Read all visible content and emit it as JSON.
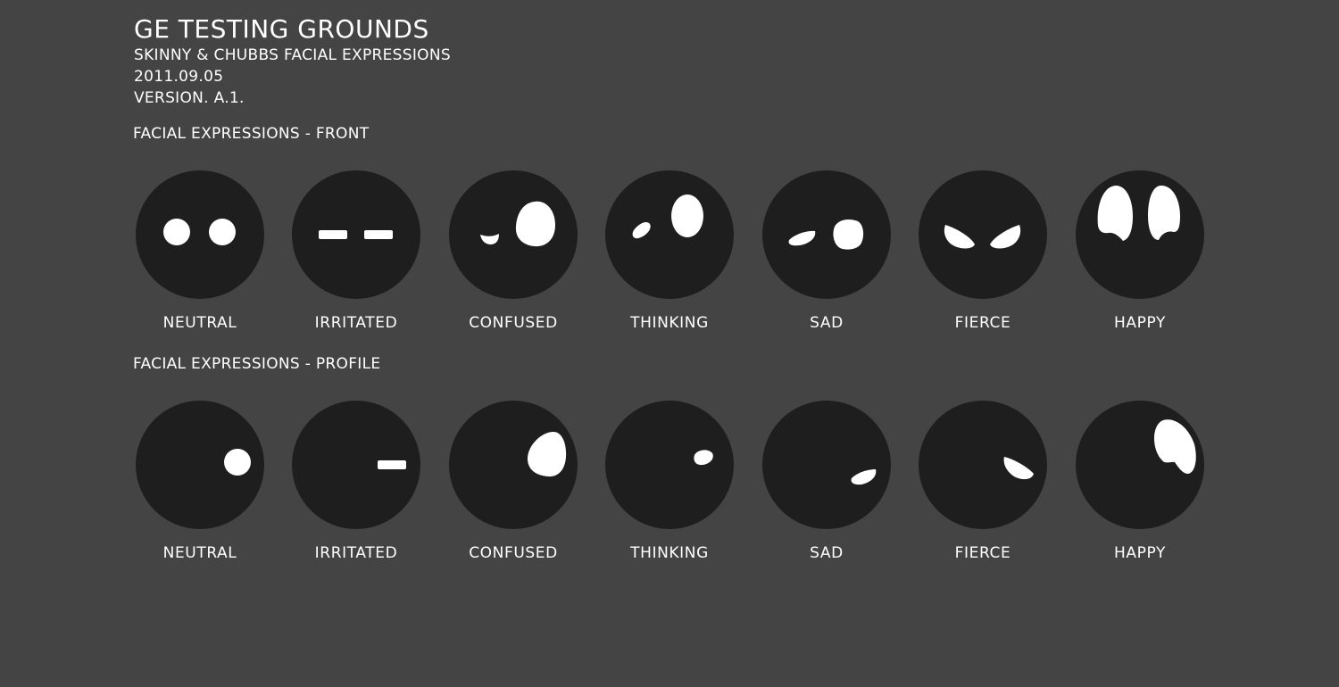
{
  "header": {
    "title": "GE TESTING GROUNDS",
    "subtitle": "SKINNY & CHUBBS FACIAL EXPRESSIONS",
    "date": "2011.09.05",
    "version": "VERSION. A.1."
  },
  "colors": {
    "background": "#444444",
    "face": "#1e1e1e",
    "eye": "#ffffff",
    "text": "#ffffff"
  },
  "sections": [
    {
      "label": "FACIAL EXPRESSIONS - FRONT",
      "faces": [
        {
          "label": "NEUTRAL",
          "icon": "neutral-front-face-icon"
        },
        {
          "label": "IRRITATED",
          "icon": "irritated-front-face-icon"
        },
        {
          "label": "CONFUSED",
          "icon": "confused-front-face-icon"
        },
        {
          "label": "THINKING",
          "icon": "thinking-front-face-icon"
        },
        {
          "label": "SAD",
          "icon": "sad-front-face-icon"
        },
        {
          "label": "FIERCE",
          "icon": "fierce-front-face-icon"
        },
        {
          "label": "HAPPY",
          "icon": "happy-front-face-icon"
        }
      ]
    },
    {
      "label": "FACIAL EXPRESSIONS - PROFILE",
      "faces": [
        {
          "label": "NEUTRAL",
          "icon": "neutral-profile-face-icon"
        },
        {
          "label": "IRRITATED",
          "icon": "irritated-profile-face-icon"
        },
        {
          "label": "CONFUSED",
          "icon": "confused-profile-face-icon"
        },
        {
          "label": "THINKING",
          "icon": "thinking-profile-face-icon"
        },
        {
          "label": "SAD",
          "icon": "sad-profile-face-icon"
        },
        {
          "label": "FIERCE",
          "icon": "fierce-profile-face-icon"
        },
        {
          "label": "HAPPY",
          "icon": "happy-profile-face-icon"
        }
      ]
    }
  ]
}
